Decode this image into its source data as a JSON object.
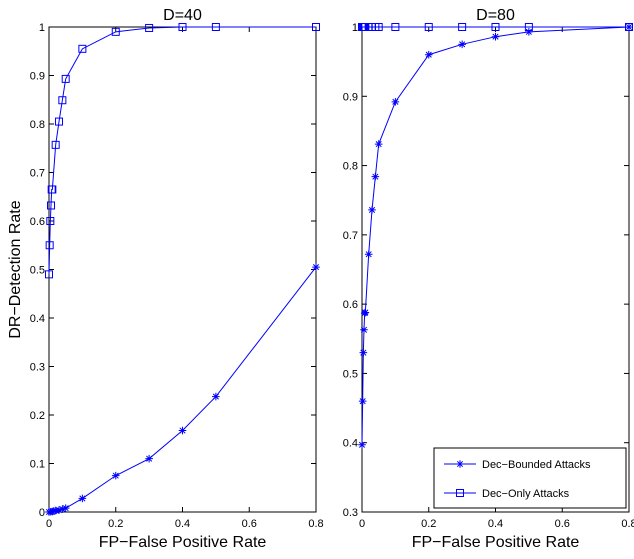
{
  "colors": {
    "series": "#0000ff",
    "axis": "#000000",
    "background": "#ffffff"
  },
  "chart_data": [
    {
      "type": "line",
      "title": "D=40",
      "xlabel": "FP−False Positive Rate",
      "ylabel": "DR−Detection Rate",
      "xlim": [
        0,
        0.8
      ],
      "ylim": [
        0,
        1
      ],
      "xticks": [
        "0",
        "0.2",
        "0.4",
        "0.6",
        "0.8"
      ],
      "yticks": [
        "0",
        "0.1",
        "0.2",
        "0.3",
        "0.4",
        "0.5",
        "0.6",
        "0.7",
        "0.8",
        "0.9",
        "1"
      ],
      "grid": false,
      "legend": null,
      "series": [
        {
          "name": "Dec−Bounded Attacks",
          "marker": "star",
          "x": [
            0,
            0.005,
            0.01,
            0.015,
            0.02,
            0.03,
            0.04,
            0.05,
            0.1,
            0.2,
            0.3,
            0.4,
            0.5,
            0.8
          ],
          "y": [
            0,
            0.0005,
            0.001,
            0.002,
            0.003,
            0.004,
            0.006,
            0.008,
            0.028,
            0.075,
            0.11,
            0.168,
            0.238,
            0.505
          ]
        },
        {
          "name": "Dec−Only Attacks",
          "marker": "square",
          "x": [
            0,
            0.002,
            0.004,
            0.006,
            0.008,
            0.01,
            0.02,
            0.03,
            0.04,
            0.05,
            0.1,
            0.2,
            0.3,
            0.4,
            0.5,
            0.8
          ],
          "y": [
            0.49,
            0.55,
            0.6,
            0.632,
            0.665,
            0.665,
            0.757,
            0.805,
            0.849,
            0.893,
            0.955,
            0.99,
            0.998,
            1.0,
            1.0,
            1.0
          ]
        }
      ]
    },
    {
      "type": "line",
      "title": "D=80",
      "xlabel": "FP−False Positive Rate",
      "ylabel": "",
      "xlim": [
        0,
        0.8
      ],
      "ylim": [
        0.3,
        1
      ],
      "xticks": [
        "0",
        "0.2",
        "0.4",
        "0.6",
        "0.8"
      ],
      "yticks": [
        "0.3",
        "0.4",
        "0.5",
        "0.6",
        "0.7",
        "0.8",
        "0.9",
        "1"
      ],
      "grid": false,
      "legend": "bottom-right",
      "series": [
        {
          "name": "Dec−Bounded Attacks",
          "marker": "star",
          "x": [
            0,
            0.002,
            0.004,
            0.006,
            0.008,
            0.01,
            0.02,
            0.03,
            0.04,
            0.05,
            0.1,
            0.2,
            0.3,
            0.4,
            0.5,
            0.8
          ],
          "y": [
            0.397,
            0.46,
            0.53,
            0.563,
            0.587,
            0.588,
            0.672,
            0.736,
            0.784,
            0.831,
            0.892,
            0.96,
            0.975,
            0.986,
            0.993,
            1.0
          ]
        },
        {
          "name": "Dec−Only Attacks",
          "marker": "square",
          "x": [
            0,
            0.002,
            0.004,
            0.006,
            0.008,
            0.01,
            0.02,
            0.03,
            0.04,
            0.05,
            0.1,
            0.2,
            0.3,
            0.4,
            0.5,
            0.8
          ],
          "y": [
            1,
            1,
            1,
            1,
            1,
            1,
            1,
            1,
            1,
            1,
            1,
            1,
            1,
            1,
            1,
            1
          ]
        }
      ]
    }
  ]
}
